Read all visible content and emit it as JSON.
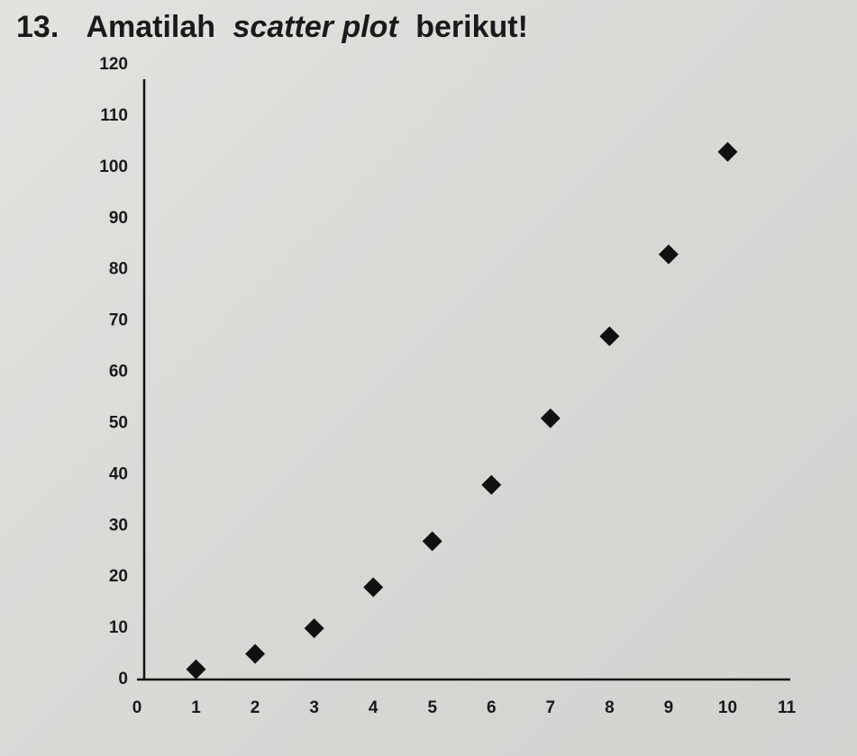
{
  "chart_data": {
    "type": "scatter",
    "question_number": "13.",
    "title_parts": [
      "Amatilah",
      "scatter plot",
      "berikut!"
    ],
    "x": [
      1,
      2,
      3,
      4,
      5,
      6,
      7,
      8,
      9,
      10
    ],
    "values": [
      2,
      5,
      10,
      18,
      27,
      38,
      51,
      67,
      83,
      103
    ],
    "color": "#111111",
    "xlim": [
      0,
      11
    ],
    "xticks": [
      0,
      1,
      2,
      3,
      4,
      5,
      6,
      7,
      8,
      9,
      10,
      11
    ],
    "ylim": [
      0,
      120
    ],
    "yticks": [
      0,
      10,
      20,
      30,
      40,
      50,
      60,
      70,
      80,
      90,
      100,
      110,
      120
    ],
    "grid": false
  }
}
